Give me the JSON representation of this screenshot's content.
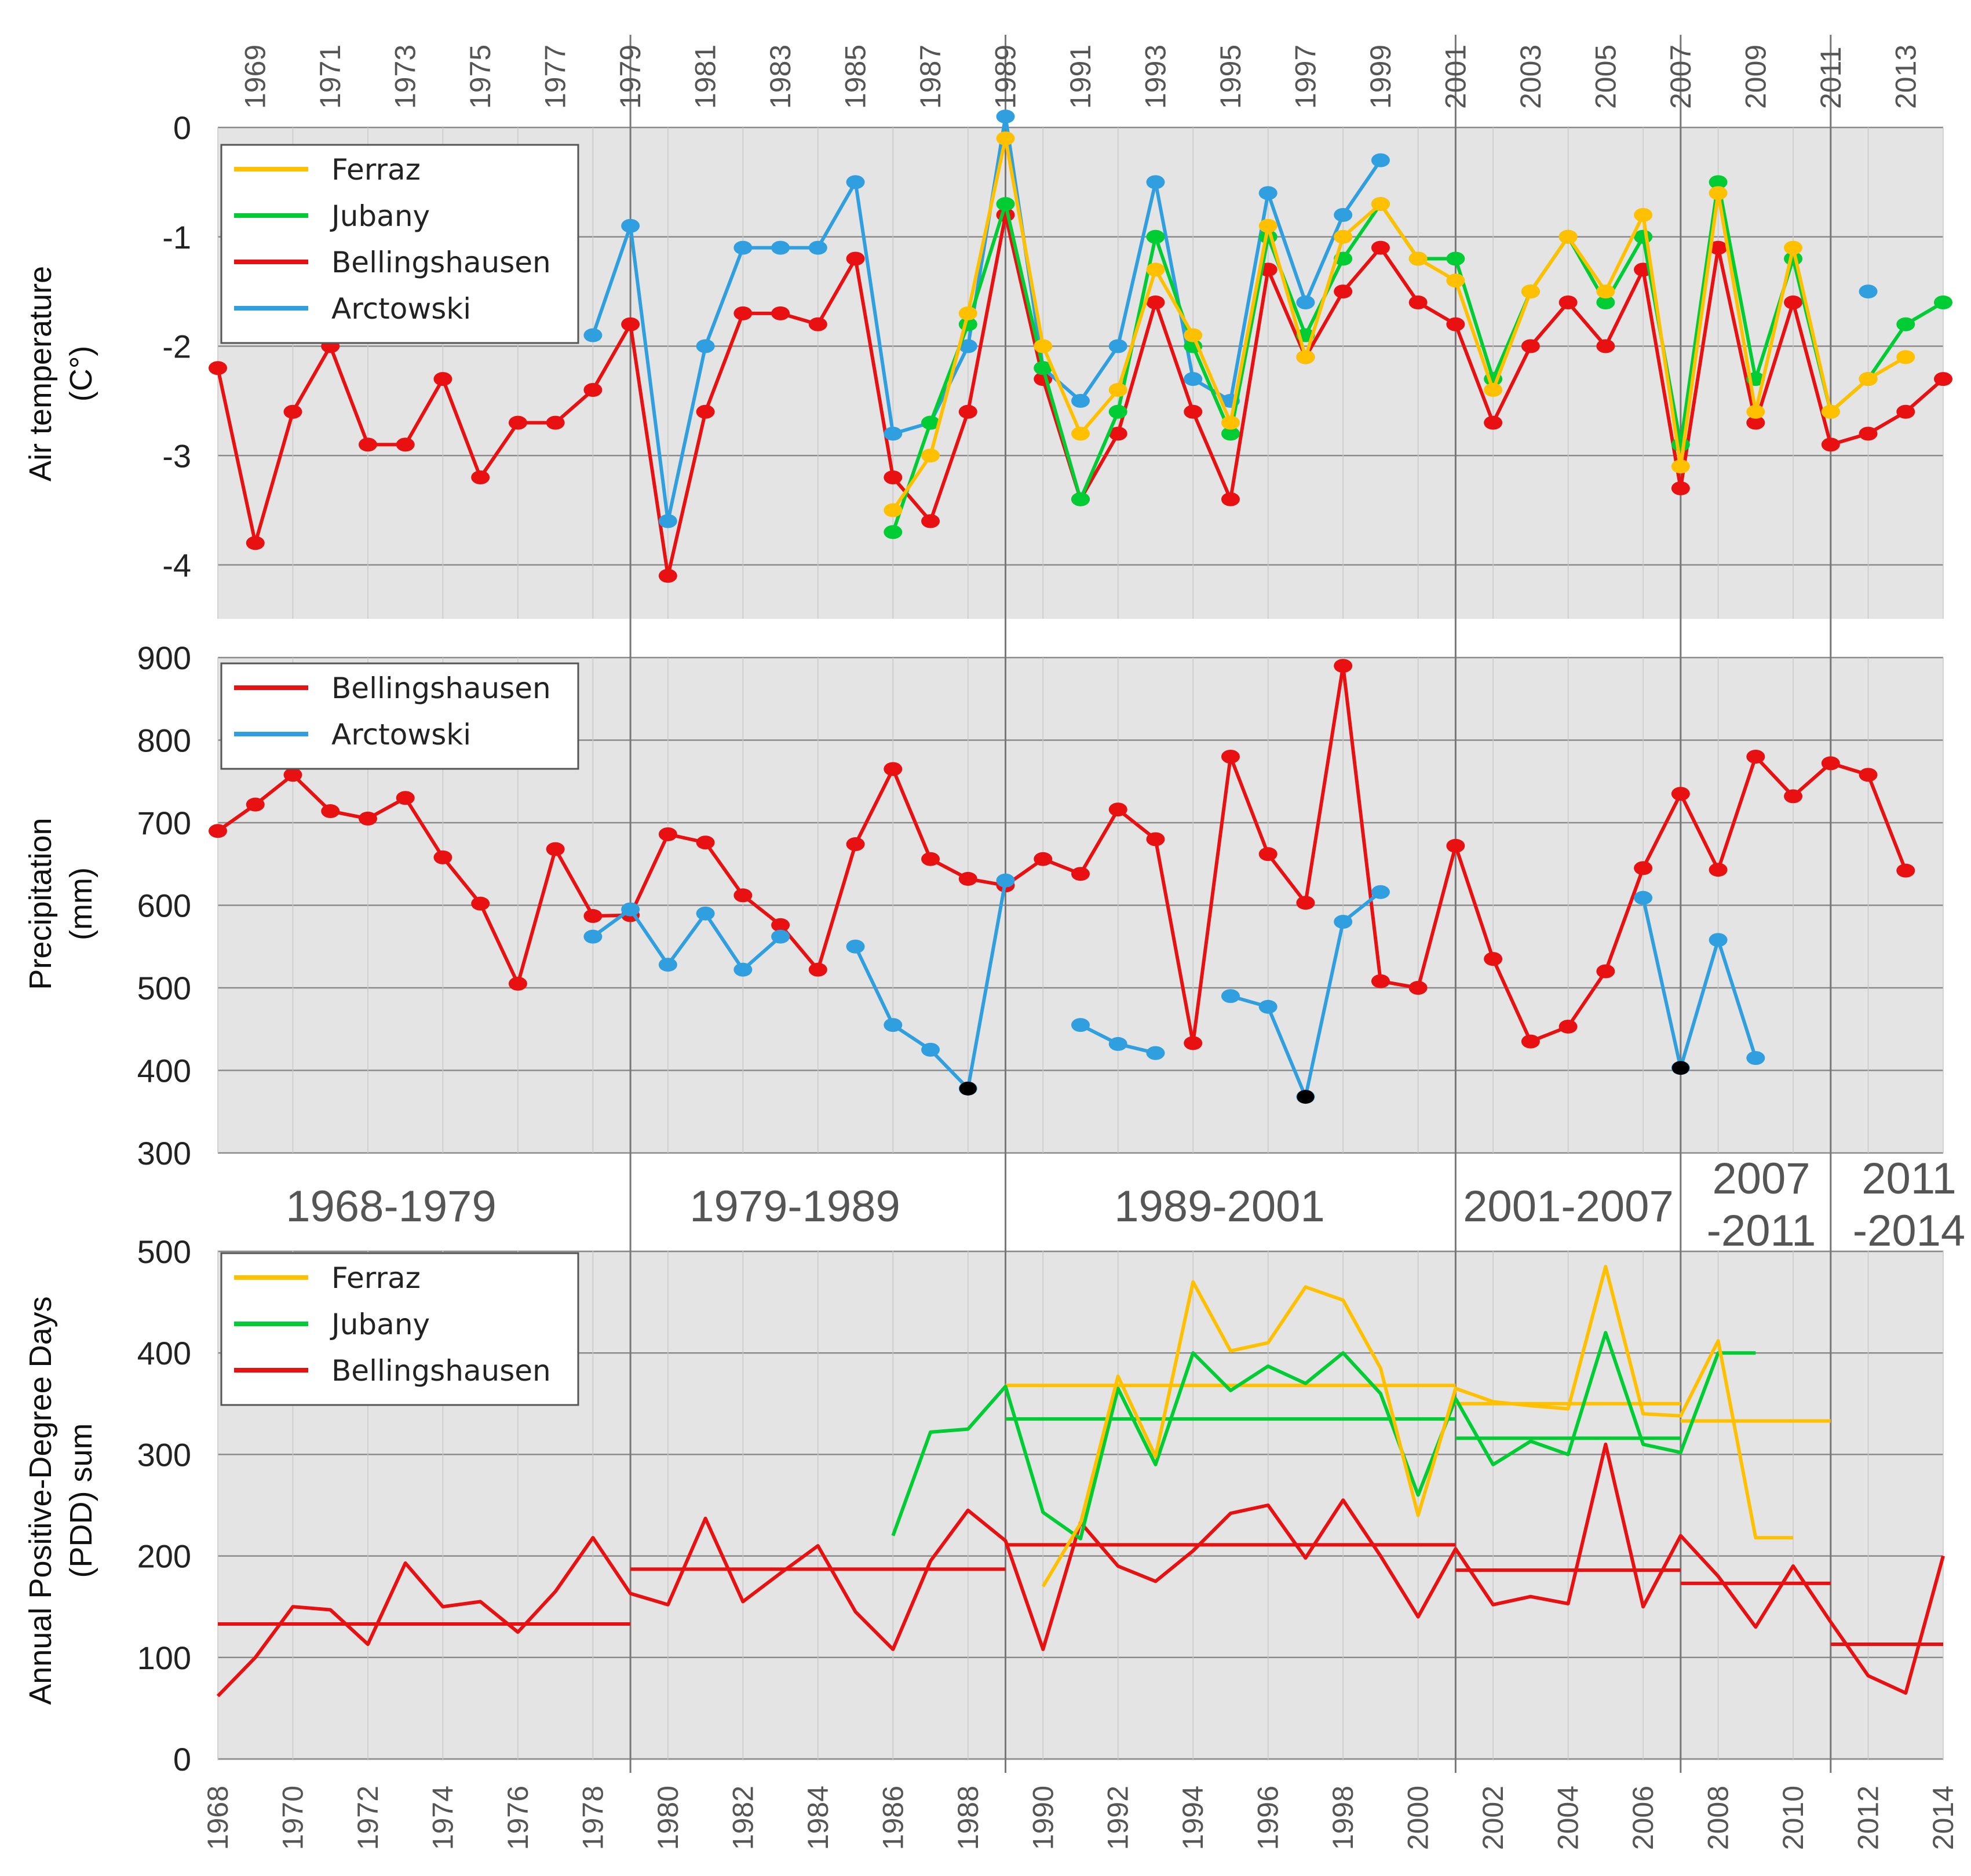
{
  "colors": {
    "Ferraz": "#ffc000",
    "Jubany": "#00cc33",
    "Bellingshausen": "#e81010",
    "Arctowski": "#2f9fe0",
    "missing": "#000000",
    "plot_bg": "#e4e4e4"
  },
  "periods": [
    "1968-1979",
    "1979-1989",
    "1989-2001",
    "2001-2007",
    "2007\n-2011",
    "2011\n-2014"
  ],
  "chart_data": [
    {
      "type": "line",
      "ylabel": "Air temperature\n(C°)",
      "ylim": [
        -4.5,
        0
      ],
      "yticks": [
        0,
        -1,
        -2,
        -3,
        -4
      ],
      "top_xticks": [
        1969,
        1971,
        1973,
        1975,
        1977,
        1979,
        1981,
        1983,
        1985,
        1987,
        1989,
        1991,
        1993,
        1995,
        1997,
        1999,
        2001,
        2003,
        2005,
        2007,
        2009,
        2011,
        2013
      ],
      "legend": [
        "Ferraz",
        "Jubany",
        "Bellingshausen",
        "Arctowski"
      ],
      "series": [
        {
          "name": "Bellingshausen",
          "x": [
            1968,
            1969,
            1970,
            1971,
            1972,
            1973,
            1974,
            1975,
            1976,
            1977,
            1978,
            1979,
            1980,
            1981,
            1982,
            1983,
            1984,
            1985,
            1986,
            1987,
            1988,
            1989,
            1990,
            1991,
            1992,
            1993,
            1994,
            1995,
            1996,
            1997,
            1998,
            1999,
            2000,
            2001,
            2002,
            2003,
            2004,
            2005,
            2006,
            2007,
            2008,
            2009,
            2010,
            2011,
            2012,
            2013,
            2014
          ],
          "y": [
            -2.2,
            -3.8,
            -2.6,
            -2.0,
            -2.9,
            -2.9,
            -2.3,
            -3.2,
            -2.7,
            -2.7,
            -2.4,
            -1.8,
            -4.1,
            -2.6,
            -1.7,
            -1.7,
            -1.8,
            -1.2,
            -3.2,
            -3.6,
            -2.6,
            -0.8,
            -2.3,
            -3.4,
            -2.8,
            -1.6,
            -2.6,
            -3.4,
            -1.3,
            -2.1,
            -1.5,
            -1.1,
            -1.6,
            -1.8,
            -2.7,
            -2.0,
            -1.6,
            -2.0,
            -1.3,
            -3.3,
            -1.1,
            -2.7,
            -1.6,
            -2.9,
            -2.8,
            -2.6,
            -2.3
          ]
        },
        {
          "name": "Arctowski",
          "segments": [
            {
              "x": [
                1978,
                1979,
                1980,
                1981,
                1982,
                1983,
                1984,
                1985,
                1986,
                1987,
                1988,
                1989,
                1990,
                1991,
                1992,
                1993,
                1994,
                1995,
                1996,
                1997,
                1998,
                1999
              ],
              "y": [
                -1.9,
                -0.9,
                -3.6,
                -2.0,
                -1.1,
                -1.1,
                -1.1,
                -0.5,
                -2.8,
                -2.7,
                -2.0,
                0.1,
                -2.2,
                -2.5,
                -2.0,
                -0.5,
                -2.3,
                -2.5,
                -0.6,
                -1.6,
                -0.8,
                -0.3
              ]
            },
            {
              "x": [
                2006
              ],
              "y": [
                -1.0
              ]
            },
            {
              "x": [
                2012
              ],
              "y": [
                -1.5
              ]
            }
          ]
        },
        {
          "name": "Jubany",
          "segments": [
            {
              "x": [
                1986,
                1987,
                1988,
                1989,
                1990,
                1991,
                1992,
                1993,
                1994,
                1995,
                1996,
                1997,
                1998,
                1999,
                2000,
                2001,
                2002,
                2003,
                2004,
                2005,
                2006,
                2007,
                2008,
                2009,
                2010,
                2011,
                2012,
                2013,
                2014
              ],
              "y": [
                -3.7,
                -2.7,
                -1.8,
                -0.7,
                -2.2,
                -3.4,
                -2.6,
                -1.0,
                -2.0,
                -2.8,
                -1.0,
                -1.9,
                -1.2,
                -0.7,
                -1.2,
                -1.2,
                -2.3,
                -1.5,
                -1.0,
                -1.6,
                -1.0,
                -2.9,
                -0.5,
                -2.3,
                -1.2,
                -2.6,
                -2.3,
                -1.8,
                -1.6
              ]
            }
          ]
        },
        {
          "name": "Ferraz",
          "segments": [
            {
              "x": [
                1986,
                1987,
                1988,
                1989,
                1990,
                1991,
                1992,
                1993,
                1994,
                1995,
                1996,
                1997,
                1998,
                1999,
                2000,
                2001,
                2002,
                2003,
                2004,
                2005,
                2006,
                2007,
                2008,
                2009,
                2010,
                2011,
                2012,
                2013
              ],
              "y": [
                -3.5,
                -3.0,
                -1.7,
                -0.1,
                -2.0,
                -2.8,
                -2.4,
                -1.3,
                -1.9,
                -2.7,
                -0.9,
                -2.1,
                -1.0,
                -0.7,
                -1.2,
                -1.4,
                -2.4,
                -1.5,
                -1.0,
                -1.5,
                -0.8,
                -3.1,
                -0.6,
                -2.6,
                -1.1,
                -2.6,
                -2.3,
                -2.1
              ]
            }
          ]
        }
      ]
    },
    {
      "type": "line",
      "ylabel": "Precipitation\n(mm)",
      "ylim": [
        300,
        900
      ],
      "yticks": [
        900,
        800,
        700,
        600,
        500,
        400,
        300
      ],
      "legend": [
        "Bellingshausen",
        "Arctowski"
      ],
      "series": [
        {
          "name": "Bellingshausen",
          "x": [
            1968,
            1969,
            1970,
            1971,
            1972,
            1973,
            1974,
            1975,
            1976,
            1977,
            1978,
            1979,
            1980,
            1981,
            1982,
            1983,
            1984,
            1985,
            1986,
            1987,
            1988,
            1989,
            1990,
            1991,
            1992,
            1993,
            1994,
            1995,
            1996,
            1997,
            1998,
            1999,
            2000,
            2001,
            2002,
            2003,
            2004,
            2005,
            2006,
            2007,
            2008,
            2009,
            2010,
            2011,
            2012,
            2013
          ],
          "y": [
            690,
            722,
            758,
            714,
            705,
            730,
            658,
            602,
            505,
            668,
            587,
            588,
            686,
            676,
            612,
            576,
            522,
            674,
            765,
            656,
            632,
            624,
            656,
            638,
            716,
            680,
            433,
            780,
            662,
            603,
            890,
            508,
            500,
            672,
            535,
            435,
            453,
            520,
            645,
            735,
            643,
            780,
            732,
            772,
            758,
            642
          ]
        },
        {
          "name": "Arctowski",
          "segments": [
            {
              "x": [
                1978,
                1979,
                1980,
                1981,
                1982,
                1983
              ],
              "y": [
                562,
                595,
                528,
                590,
                522,
                562
              ]
            },
            {
              "x": [
                1985,
                1986,
                1987,
                1988,
                1989
              ],
              "y": [
                550,
                455,
                425,
                378,
                630
              ]
            },
            {
              "x": [
                1991,
                1992,
                1993
              ],
              "y": [
                455,
                432,
                421
              ]
            },
            {
              "x": [
                1995,
                1996,
                1997,
                1998,
                1999
              ],
              "y": [
                490,
                477,
                368,
                580,
                616
              ]
            },
            {
              "x": [
                2006,
                2007,
                2008,
                2009
              ],
              "y": [
                609,
                403,
                558,
                415
              ]
            }
          ]
        },
        {
          "name": "missing-year markers",
          "x": [
            1988,
            1997,
            2007
          ],
          "y": [
            378,
            368,
            403
          ]
        }
      ]
    },
    {
      "type": "line",
      "ylabel": "Annual Positive-Degree Days\n(PDD) sum",
      "ylim": [
        0,
        500
      ],
      "yticks": [
        500,
        400,
        300,
        200,
        100,
        0
      ],
      "xticks": [
        1968,
        1970,
        1972,
        1974,
        1976,
        1978,
        1980,
        1982,
        1984,
        1986,
        1988,
        1990,
        1992,
        1994,
        1996,
        1998,
        2000,
        2002,
        2004,
        2006,
        2008,
        2010,
        2012,
        2014
      ],
      "legend": [
        "Ferraz",
        "Jubany",
        "Bellingshausen"
      ],
      "series": [
        {
          "name": "Bellingshausen",
          "x": [
            1968,
            1969,
            1970,
            1971,
            1972,
            1973,
            1974,
            1975,
            1976,
            1977,
            1978,
            1979,
            1980,
            1981,
            1982,
            1983,
            1984,
            1985,
            1986,
            1987,
            1988,
            1989,
            1990,
            1991,
            1992,
            1993,
            1994,
            1995,
            1996,
            1997,
            1998,
            1999,
            2000,
            2001,
            2002,
            2003,
            2004,
            2005,
            2006,
            2007,
            2008,
            2009,
            2010,
            2011,
            2012,
            2013,
            2014
          ],
          "y": [
            62,
            100,
            150,
            147,
            113,
            193,
            150,
            155,
            125,
            165,
            218,
            163,
            152,
            237,
            155,
            183,
            210,
            145,
            108,
            195,
            245,
            215,
            108,
            233,
            190,
            175,
            205,
            242,
            250,
            198,
            255,
            200,
            140,
            207,
            152,
            160,
            153,
            310,
            150,
            220,
            180,
            130,
            190,
            135,
            82,
            65,
            200
          ]
        },
        {
          "name": "Jubany",
          "x": [
            1986,
            1987,
            1988,
            1989,
            1990,
            1991,
            1992,
            1993,
            1994,
            1995,
            1996,
            1997,
            1998,
            1999,
            2000,
            2001,
            2002,
            2003,
            2004,
            2005,
            2006,
            2007,
            2008,
            2009
          ],
          "y": [
            220,
            322,
            325,
            367,
            243,
            217,
            365,
            290,
            400,
            363,
            387,
            370,
            400,
            360,
            260,
            355,
            290,
            313,
            300,
            420,
            310,
            302,
            400,
            400
          ]
        },
        {
          "name": "Ferraz",
          "x": [
            1990,
            1991,
            1992,
            1993,
            1994,
            1995,
            1996,
            1997,
            1998,
            1999,
            2000,
            2001,
            2002,
            2003,
            2004,
            2005,
            2006,
            2007,
            2008,
            2009,
            2010
          ],
          "y": [
            170,
            232,
            377,
            298,
            470,
            402,
            410,
            465,
            452,
            385,
            240,
            365,
            352,
            348,
            345,
            485,
            340,
            338,
            412,
            218,
            218
          ]
        }
      ],
      "period_means": [
        {
          "name": "Bellingshausen",
          "x0": 1968,
          "x1": 1979,
          "y": 133
        },
        {
          "name": "Bellingshausen",
          "x0": 1979,
          "x1": 1989,
          "y": 187
        },
        {
          "name": "Bellingshausen",
          "x0": 1989,
          "x1": 2001,
          "y": 211
        },
        {
          "name": "Bellingshausen",
          "x0": 2001,
          "x1": 2007,
          "y": 186
        },
        {
          "name": "Bellingshausen",
          "x0": 2007,
          "x1": 2011,
          "y": 173
        },
        {
          "name": "Bellingshausen",
          "x0": 2011,
          "x1": 2014,
          "y": 113
        },
        {
          "name": "Jubany",
          "x0": 1989,
          "x1": 2001,
          "y": 335
        },
        {
          "name": "Jubany",
          "x0": 2001,
          "x1": 2007,
          "y": 316
        },
        {
          "name": "Ferraz",
          "x0": 1989,
          "x1": 2001,
          "y": 368
        },
        {
          "name": "Ferraz",
          "x0": 2001,
          "x1": 2007,
          "y": 350
        },
        {
          "name": "Ferraz",
          "x0": 2007,
          "x1": 2011,
          "y": 333
        }
      ]
    }
  ]
}
